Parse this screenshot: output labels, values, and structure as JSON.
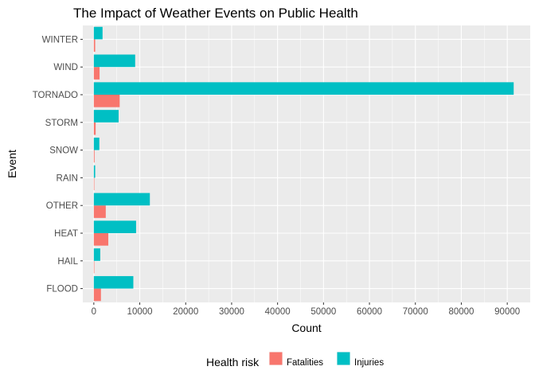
{
  "chart_data": {
    "type": "bar",
    "orientation": "horizontal",
    "title": "The Impact of Weather Events on Public Health",
    "xlabel": "Count",
    "ylabel": "Event",
    "categories": [
      "FLOOD",
      "HAIL",
      "HEAT",
      "OTHER",
      "RAIN",
      "SNOW",
      "STORM",
      "TORNADO",
      "WIND",
      "WINTER"
    ],
    "series": [
      {
        "name": "Fatalities",
        "color": "#F8766D",
        "values": [
          1550,
          15,
          3150,
          2600,
          100,
          160,
          400,
          5630,
          1250,
          300
        ]
      },
      {
        "name": "Injuries",
        "color": "#00BFC4",
        "values": [
          8600,
          1400,
          9200,
          12200,
          300,
          1200,
          5400,
          91400,
          9000,
          1900
        ]
      }
    ],
    "xlim": [
      -2400,
      95000
    ],
    "xticks": [
      0,
      10000,
      20000,
      30000,
      40000,
      50000,
      60000,
      70000,
      80000,
      90000
    ],
    "grid": true,
    "panel_background": "#EBEBEB",
    "legend": {
      "title": "Health risk",
      "position": "bottom"
    }
  }
}
